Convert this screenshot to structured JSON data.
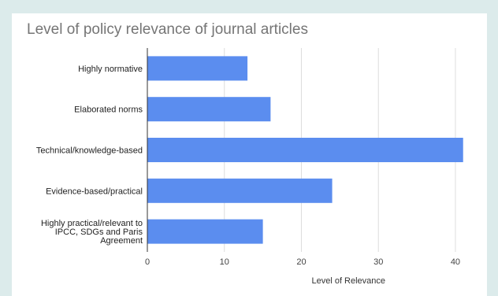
{
  "chart_data": {
    "type": "bar",
    "orientation": "horizontal",
    "title": "Level of policy relevance of journal articles",
    "xlabel": "Level of Relevance",
    "ylabel": "",
    "categories": [
      "Highly normative",
      "Elaborated norms",
      "Technical/knowledge-based",
      "Evidence-based/practical",
      "Highly practical/relevant to IPCC, SDGs and Paris Agreement"
    ],
    "category_lines": [
      [
        "Highly normative"
      ],
      [
        "Elaborated norms"
      ],
      [
        "Technical/knowledge-based"
      ],
      [
        "Evidence-based/practical"
      ],
      [
        "Highly practical/relevant to",
        "IPCC, SDGs and Paris",
        "Agreement"
      ]
    ],
    "values": [
      13,
      16,
      41,
      24,
      15
    ],
    "xlim": [
      0,
      42
    ],
    "ticks": [
      0,
      10,
      20,
      30,
      40
    ],
    "grid": true,
    "legend": "none",
    "bar_color": "#5b8def"
  }
}
